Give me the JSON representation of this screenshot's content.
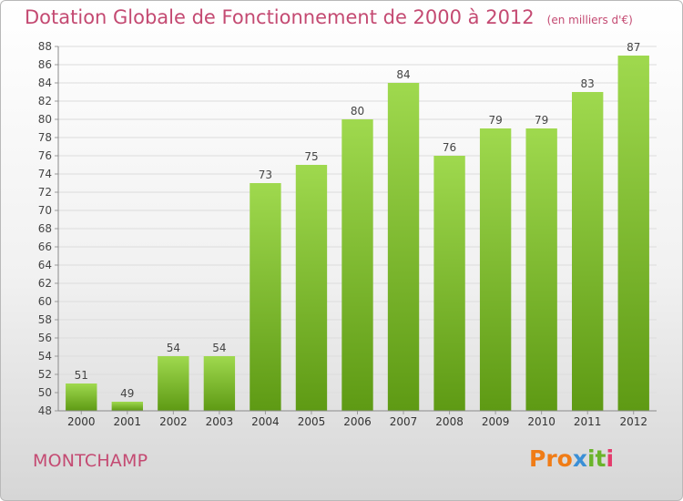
{
  "header": {
    "title": "Dotation Globale de Fonctionnement de 2000 à 2012",
    "subtitle": "(en milliers d'€)"
  },
  "footer": {
    "commune": "MONTCHAMP",
    "logo": [
      "Pro",
      "x",
      "it",
      "i"
    ]
  },
  "colors": {
    "title": "#c44a72",
    "bar_light": "#9fd94e",
    "bar_dark": "#5e9a14"
  },
  "chart_data": {
    "type": "bar",
    "title": "Dotation Globale de Fonctionnement de 2000 à 2012",
    "subtitle": "(en milliers d'€)",
    "categories": [
      "2000",
      "2001",
      "2002",
      "2003",
      "2004",
      "2005",
      "2006",
      "2007",
      "2008",
      "2009",
      "2010",
      "2011",
      "2012"
    ],
    "values": [
      51,
      49,
      54,
      54,
      73,
      75,
      80,
      84,
      76,
      79,
      79,
      83,
      87
    ],
    "ylim": [
      48,
      88
    ],
    "ytick_step": 2,
    "grid": true,
    "data_labels": true
  }
}
